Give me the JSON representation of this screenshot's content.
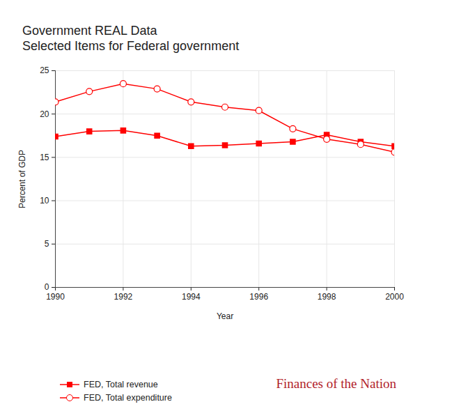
{
  "chart_data": {
    "type": "line",
    "title": "Government REAL Data",
    "subtitle": "Selected Items for Federal government",
    "x_label": "Year",
    "y_label": "Percent of GDP",
    "source": "Finances of the Nation",
    "x": [
      1990,
      1991,
      1992,
      1993,
      1994,
      1995,
      1996,
      1997,
      1998,
      1999,
      2000
    ],
    "series": [
      {
        "name": "FED, Total revenue",
        "color": "#ff0000",
        "marker": "square",
        "values": [
          17.4,
          18.0,
          18.1,
          17.5,
          16.3,
          16.4,
          16.6,
          16.8,
          17.6,
          16.8,
          16.3
        ]
      },
      {
        "name": "FED, Total expenditure",
        "color": "#ff0000",
        "marker": "circle-open",
        "values": [
          21.4,
          22.6,
          23.5,
          22.9,
          21.4,
          20.8,
          20.4,
          18.3,
          17.1,
          16.5,
          15.6
        ]
      }
    ],
    "xlim": [
      1990,
      2000
    ],
    "xticks": [
      1990,
      1992,
      1994,
      1996,
      1998,
      2000
    ],
    "ylim": [
      0,
      25
    ],
    "yticks": [
      0,
      5,
      10,
      15,
      20,
      25
    ],
    "grid": true,
    "legend": "bottom-left"
  }
}
